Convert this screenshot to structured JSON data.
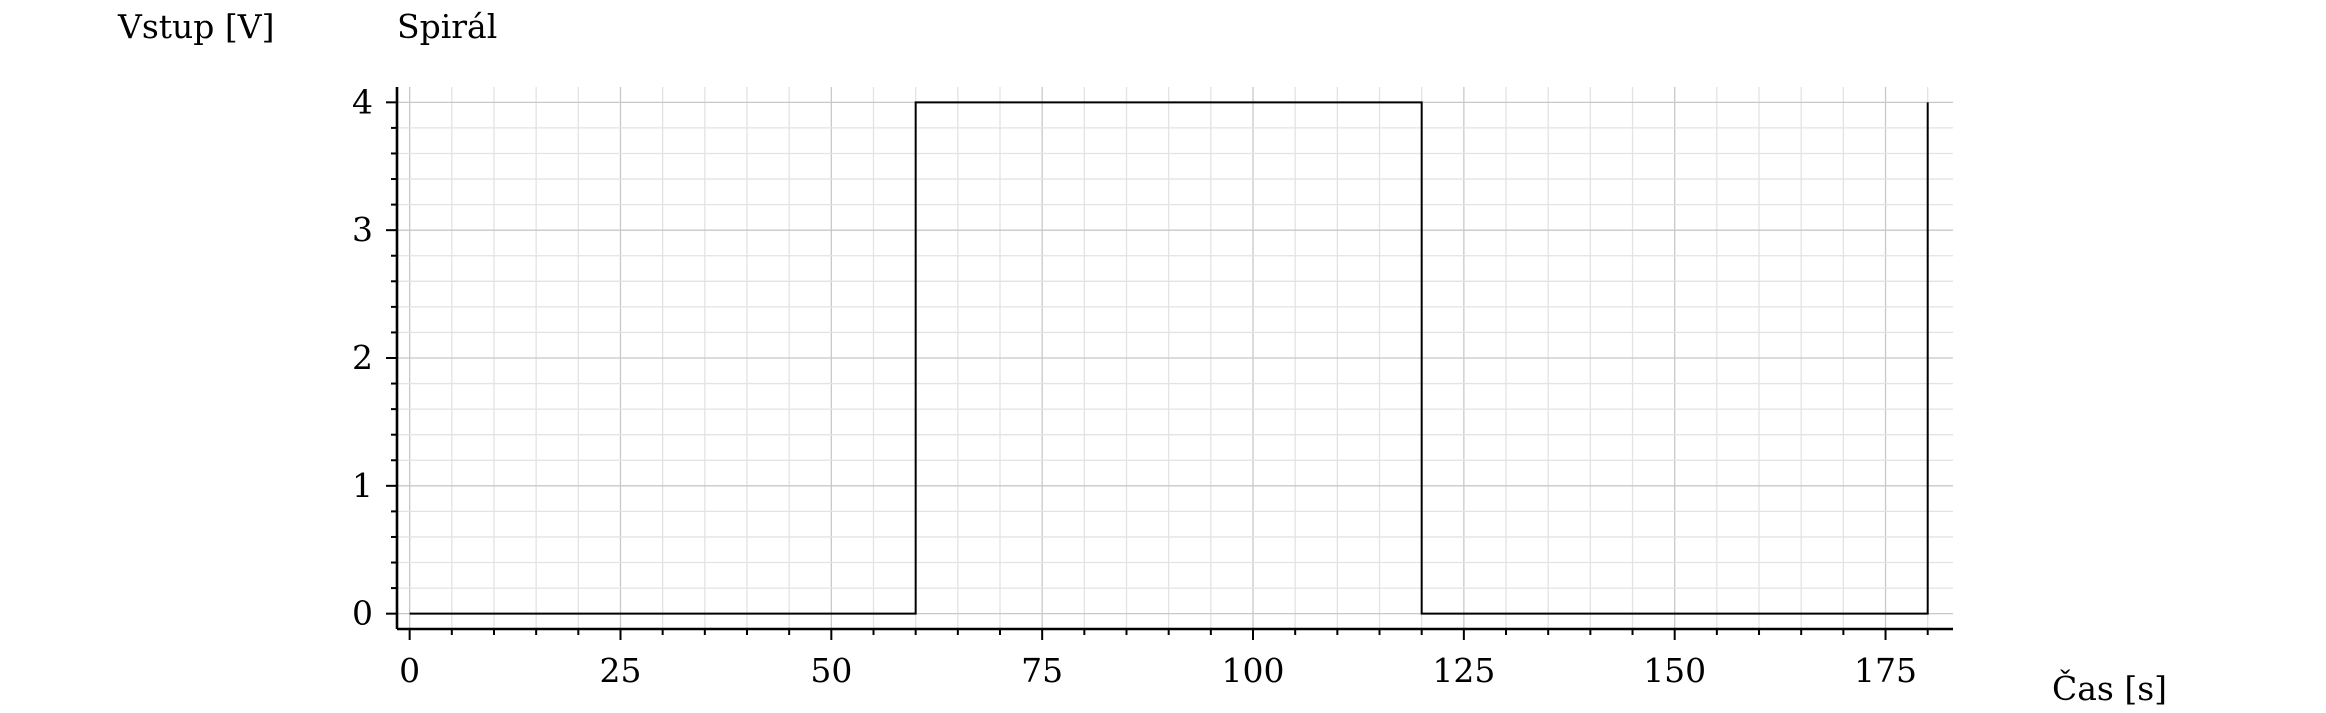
{
  "chart_data": {
    "type": "line",
    "title": "Spirál",
    "xlabel": "Čas [s]",
    "ylabel": "Vstup [V]",
    "xlim": [
      -1.5,
      183
    ],
    "ylim": [
      -0.12,
      4.12
    ],
    "xticks": [
      0,
      25,
      50,
      75,
      100,
      125,
      150,
      175
    ],
    "yticks": [
      0,
      1,
      2,
      3,
      4
    ],
    "xtick_labels": [
      "0",
      "25",
      "50",
      "75",
      "100",
      "125",
      "150",
      "175"
    ],
    "ytick_labels": [
      "0",
      "1",
      "2",
      "3",
      "4"
    ],
    "grid": true,
    "step": "post",
    "series": [
      {
        "x": [
          0,
          60,
          120,
          180
        ],
        "y": [
          0,
          4,
          0,
          4
        ]
      }
    ],
    "colors": {
      "line": "#000000",
      "grid_major": "#c8c8c8",
      "grid_minor": "#e3e3e3"
    }
  }
}
